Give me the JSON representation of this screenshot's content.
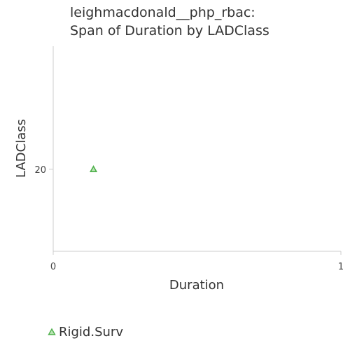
{
  "chart_data": {
    "type": "scatter",
    "title_lines": [
      "leighmacdonald__php_rbac:",
      "Span of Duration by LADClass"
    ],
    "xlabel": "Duration",
    "ylabel": "LADClass",
    "xlim": [
      0,
      1
    ],
    "ylim": [
      10,
      35
    ],
    "x_ticks": [
      0,
      1
    ],
    "y_ticks": [
      20
    ],
    "grid": false,
    "legend_position": "bottom-left",
    "series": [
      {
        "name": "Rigid.Surv",
        "marker": "triangle",
        "color": "#4daf4a",
        "points": [
          {
            "x": 0.14,
            "y": 20
          }
        ]
      }
    ]
  }
}
